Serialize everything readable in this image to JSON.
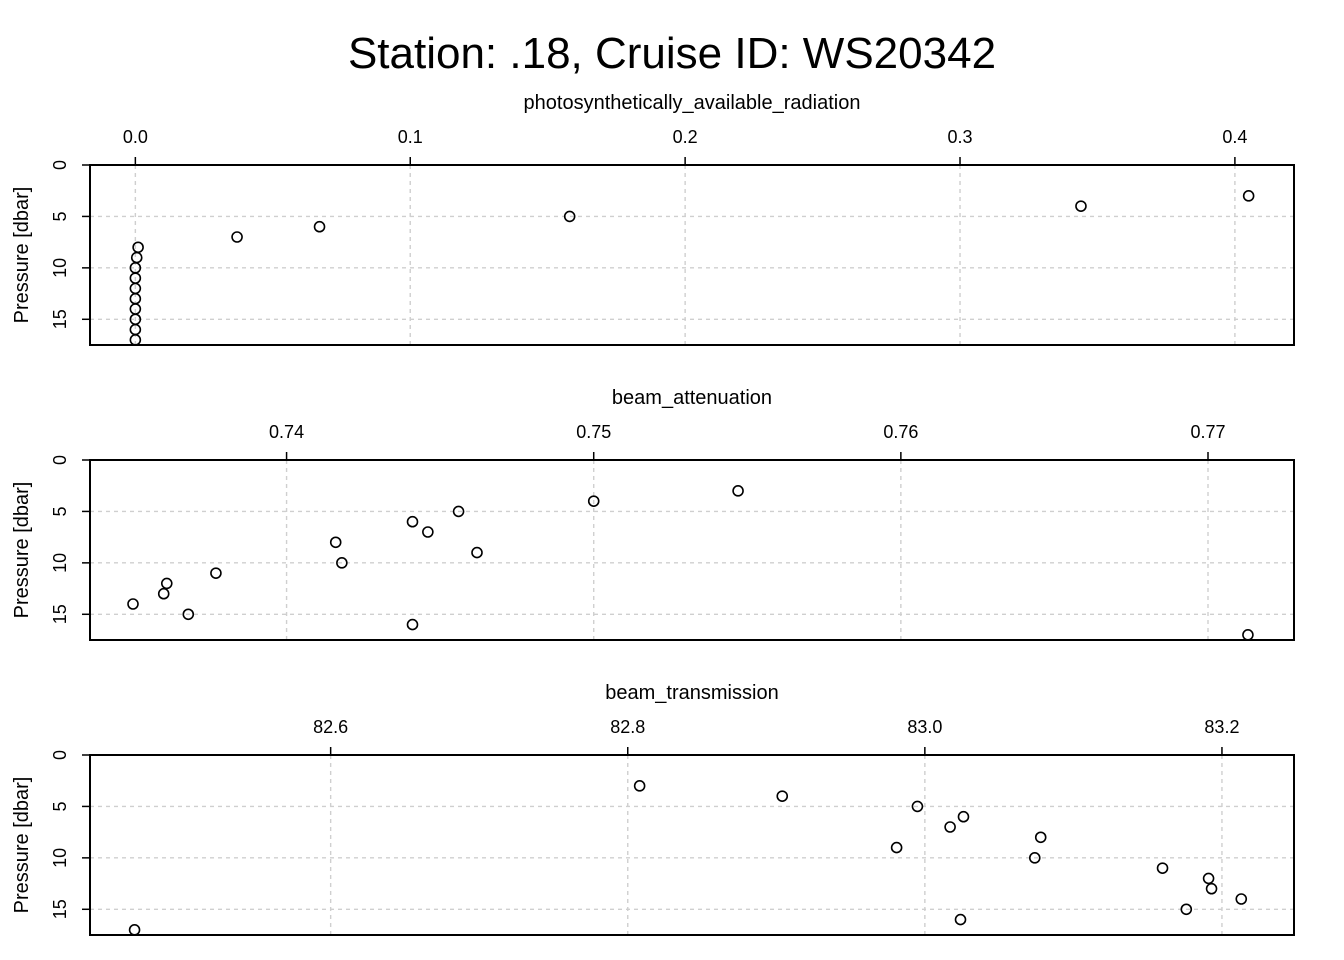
{
  "title": "Station: .18, Cruise ID: WS20342",
  "chart_data": [
    {
      "type": "scatter",
      "title": "photosynthetically_available_radiation",
      "xlabel": "photosynthetically_available_radiation",
      "ylabel": "Pressure [dbar]",
      "xlim": [
        -0.0165,
        0.4215
      ],
      "ylim": [
        0,
        17.5
      ],
      "y_reversed": true,
      "xticks": [
        0.0,
        0.1,
        0.2,
        0.3,
        0.4
      ],
      "xtick_labels": [
        "0.0",
        "0.1",
        "0.2",
        "0.3",
        "0.4"
      ],
      "yticks": [
        0,
        5,
        10,
        15
      ],
      "ytick_labels": [
        "0",
        "5",
        "10",
        "15"
      ],
      "grid": true,
      "points": [
        {
          "x": 0.405,
          "y": 3
        },
        {
          "x": 0.344,
          "y": 4
        },
        {
          "x": 0.158,
          "y": 5
        },
        {
          "x": 0.067,
          "y": 6
        },
        {
          "x": 0.037,
          "y": 7
        },
        {
          "x": 0.001,
          "y": 8
        },
        {
          "x": 0.0005,
          "y": 9
        },
        {
          "x": 0.0,
          "y": 10
        },
        {
          "x": 0.0,
          "y": 11
        },
        {
          "x": 0.0,
          "y": 12
        },
        {
          "x": 0.0,
          "y": 13
        },
        {
          "x": 0.0,
          "y": 14
        },
        {
          "x": 0.0,
          "y": 15
        },
        {
          "x": 0.0,
          "y": 16
        },
        {
          "x": 0.0,
          "y": 17
        }
      ]
    },
    {
      "type": "scatter",
      "title": "beam_attenuation",
      "xlabel": "beam_attenuation",
      "ylabel": "Pressure [dbar]",
      "xlim": [
        0.7336,
        0.7728
      ],
      "ylim": [
        0,
        17.5
      ],
      "y_reversed": true,
      "xticks": [
        0.74,
        0.75,
        0.76,
        0.77
      ],
      "xtick_labels": [
        "0.74",
        "0.75",
        "0.76",
        "0.77"
      ],
      "yticks": [
        0,
        5,
        10,
        15
      ],
      "ytick_labels": [
        "0",
        "5",
        "10",
        "15"
      ],
      "grid": true,
      "points": [
        {
          "x": 0.7547,
          "y": 3
        },
        {
          "x": 0.75,
          "y": 4
        },
        {
          "x": 0.7456,
          "y": 5
        },
        {
          "x": 0.7441,
          "y": 6
        },
        {
          "x": 0.7446,
          "y": 7
        },
        {
          "x": 0.7416,
          "y": 8
        },
        {
          "x": 0.7462,
          "y": 9
        },
        {
          "x": 0.7418,
          "y": 10
        },
        {
          "x": 0.7377,
          "y": 11
        },
        {
          "x": 0.7361,
          "y": 12
        },
        {
          "x": 0.736,
          "y": 13
        },
        {
          "x": 0.735,
          "y": 14
        },
        {
          "x": 0.7368,
          "y": 15
        },
        {
          "x": 0.7441,
          "y": 16
        },
        {
          "x": 0.7713,
          "y": 17
        }
      ]
    },
    {
      "type": "scatter",
      "title": "beam_transmission",
      "xlabel": "beam_transmission",
      "ylabel": "Pressure [dbar]",
      "xlim": [
        82.438,
        83.2485
      ],
      "ylim": [
        0,
        17.5
      ],
      "y_reversed": true,
      "xticks": [
        82.6,
        82.8,
        83.0,
        83.2
      ],
      "xtick_labels": [
        "82.6",
        "82.8",
        "83.0",
        "83.2"
      ],
      "yticks": [
        0,
        5,
        10,
        15
      ],
      "ytick_labels": [
        "0",
        "5",
        "10",
        "15"
      ],
      "grid": true,
      "points": [
        {
          "x": 82.808,
          "y": 3
        },
        {
          "x": 82.904,
          "y": 4
        },
        {
          "x": 82.995,
          "y": 5
        },
        {
          "x": 83.026,
          "y": 6
        },
        {
          "x": 83.017,
          "y": 7
        },
        {
          "x": 83.078,
          "y": 8
        },
        {
          "x": 82.981,
          "y": 9
        },
        {
          "x": 83.074,
          "y": 10
        },
        {
          "x": 83.16,
          "y": 11
        },
        {
          "x": 83.191,
          "y": 12
        },
        {
          "x": 83.193,
          "y": 13
        },
        {
          "x": 83.213,
          "y": 14
        },
        {
          "x": 83.176,
          "y": 15
        },
        {
          "x": 83.024,
          "y": 16
        },
        {
          "x": 82.468,
          "y": 17
        }
      ]
    }
  ]
}
